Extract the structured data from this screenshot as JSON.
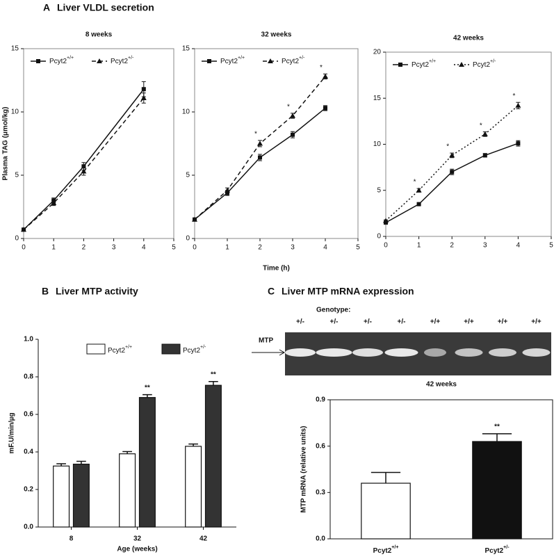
{
  "panels": [
    {
      "letter": "A",
      "title": "Liver VLDL secretion"
    },
    {
      "letter": "B",
      "title": "Liver MTP activity"
    },
    {
      "letter": "C",
      "title": "Liver MTP mRNA expression"
    }
  ],
  "gel": {
    "heading": "Genotype:",
    "lanes": [
      "+/-",
      "+/-",
      "+/-",
      "+/-",
      "+/+",
      "+/+",
      "+/+",
      "+/+"
    ],
    "band_label": "MTP"
  },
  "chart_data": [
    {
      "type": "line",
      "title": "8 weeks",
      "ylabel": "Plasma TAG (μmol/kg)",
      "x": [
        0,
        1,
        2,
        4
      ],
      "xlim": [
        0,
        5
      ],
      "xticks": [
        0,
        1,
        2,
        3,
        4,
        5
      ],
      "ylim": [
        0,
        15
      ],
      "yticks": [
        0,
        5,
        10,
        15
      ],
      "legend": "upper left",
      "series": [
        {
          "name": "Pcyt2+/+",
          "color": "#111111",
          "dash": "solid",
          "marker": "square",
          "values": [
            0.7,
            3.0,
            5.7,
            11.8
          ],
          "errors": [
            0.1,
            0.2,
            0.3,
            0.6
          ]
        },
        {
          "name": "Pcyt2+/-",
          "color": "#111111",
          "dash": "dashed",
          "marker": "triangle",
          "values": [
            0.7,
            2.8,
            5.3,
            11.1
          ],
          "errors": [
            0.1,
            0.2,
            0.3,
            0.4
          ]
        }
      ]
    },
    {
      "type": "line",
      "title": "32 weeks",
      "xlabel": "Time (h)",
      "x": [
        0,
        1,
        2,
        3,
        4
      ],
      "xlim": [
        0,
        5
      ],
      "xticks": [
        0,
        1,
        2,
        3,
        4,
        5
      ],
      "ylim": [
        0,
        15
      ],
      "yticks": [
        0,
        5,
        10,
        15
      ],
      "legend": "upper left",
      "series": [
        {
          "name": "Pcyt2+/+",
          "color": "#111111",
          "dash": "solid",
          "marker": "square",
          "values": [
            1.5,
            3.6,
            6.4,
            8.2,
            10.3
          ],
          "errors": [
            0.1,
            0.2,
            0.25,
            0.25,
            0.2
          ]
        },
        {
          "name": "Pcyt2+/-",
          "color": "#111111",
          "dash": "dashed",
          "marker": "triangle",
          "values": [
            1.5,
            3.8,
            7.5,
            9.7,
            12.8
          ],
          "errors": [
            0.1,
            0.2,
            0.25,
            0.2,
            0.2
          ],
          "significance": [
            null,
            null,
            "*",
            "*",
            "*"
          ]
        }
      ]
    },
    {
      "type": "line",
      "title": "42 weeks",
      "x": [
        0,
        1,
        2,
        3,
        4
      ],
      "xlim": [
        0,
        5
      ],
      "xticks": [
        0,
        1,
        2,
        3,
        4,
        5
      ],
      "ylim": [
        0,
        20
      ],
      "yticks": [
        0,
        5,
        10,
        15,
        20
      ],
      "legend": "upper left",
      "series": [
        {
          "name": "Pcyt2+/+",
          "color": "#111111",
          "dash": "solid",
          "marker": "square",
          "values": [
            1.5,
            3.5,
            7.0,
            8.8,
            10.1
          ],
          "errors": [
            0.1,
            0.1,
            0.3,
            0.2,
            0.3
          ]
        },
        {
          "name": "Pcyt2+/-",
          "color": "#111111",
          "dash": "dotted",
          "marker": "triangle",
          "values": [
            1.7,
            5.0,
            8.8,
            11.1,
            14.2
          ],
          "errors": [
            0.1,
            0.2,
            0.25,
            0.25,
            0.35
          ],
          "significance": [
            null,
            "*",
            "*",
            "*",
            "*"
          ]
        }
      ]
    },
    {
      "type": "bar",
      "xlabel": "Age (weeks)",
      "ylabel": "mF.U/min/µg",
      "categories": [
        "8",
        "32",
        "42"
      ],
      "ylim": [
        0,
        1.0
      ],
      "yticks": [
        {
          "value": 0,
          "label": "0.0"
        },
        0.2,
        0.4,
        0.6,
        0.8,
        {
          "value": 1,
          "label": "1.0"
        }
      ],
      "legend": "upper center",
      "series": [
        {
          "name": "Pcyt2+/+",
          "color": "#ffffff",
          "values": [
            0.325,
            0.39,
            0.43
          ],
          "errors": [
            0.012,
            0.012,
            0.012
          ]
        },
        {
          "name": "Pcyt2+/-",
          "color": "#333333",
          "values": [
            0.335,
            0.69,
            0.755
          ],
          "errors": [
            0.015,
            0.015,
            0.02
          ],
          "significance": [
            null,
            "**",
            "**"
          ]
        }
      ]
    },
    {
      "type": "bar",
      "title": "42 weeks",
      "ylabel": "MTP mRNA (relative units)",
      "categories": [
        "Pcyt2+/+",
        "Pcyt2+/-"
      ],
      "ylim": [
        0,
        0.9
      ],
      "yticks": [
        {
          "value": 0,
          "label": "0.0"
        },
        0.3,
        0.6,
        0.9
      ],
      "series": [
        {
          "colors": [
            "#ffffff",
            "#111111"
          ],
          "values": [
            0.36,
            0.63
          ],
          "errors": [
            0.07,
            0.05
          ],
          "significance": [
            null,
            "**"
          ]
        }
      ]
    }
  ]
}
